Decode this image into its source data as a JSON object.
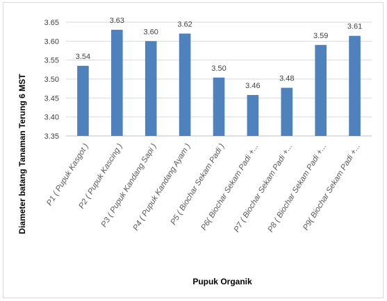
{
  "chart_data": {
    "type": "bar",
    "title": "",
    "xlabel": "Pupuk Organik",
    "ylabel": "Diameter batang Tanaman Terung 6 MST",
    "ylim": [
      3.35,
      3.65
    ],
    "yticks": [
      "3.35",
      "3.40",
      "3.45",
      "3.50",
      "3.55",
      "3.60",
      "3.65"
    ],
    "grid": "horizontal",
    "legend": "none",
    "bar_color": "#4f81bd",
    "categories": [
      "P1 ( Pupuk Kasgot )",
      "P2 ( Pupuk Kascing )",
      "P3 ( Pupuk Kandang Sapi )",
      "P4 ( Pupuk Kandang Ayam )",
      "P5 ( Biochar Sekam Padi )",
      "P6( Biochar Sekam Padi +...",
      "P7 ( Biochar Sekam Padi +...",
      "P8 ( Biochar Sekam Padi +...",
      "P9( Biochar Sekam Padi +..."
    ],
    "values": [
      3.535,
      3.63,
      3.6,
      3.62,
      3.504,
      3.458,
      3.477,
      3.59,
      3.614
    ],
    "data_labels": [
      "3.54",
      "3.63",
      "3.60",
      "3.62",
      "3.50",
      "3.46",
      "3.48",
      "3.59",
      "3.61"
    ]
  }
}
